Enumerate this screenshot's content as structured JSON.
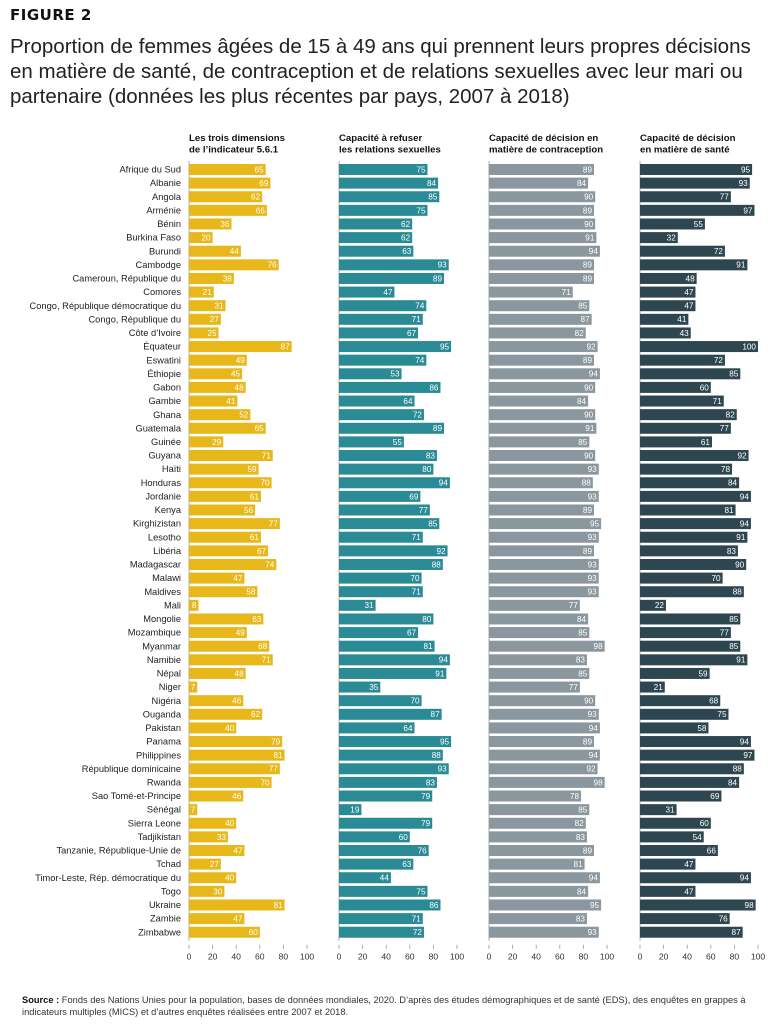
{
  "figure_label": "FIGURE 2",
  "title": "Proportion de femmes âgées de 15 à 49 ans qui prennent leurs propres décisions en matière de santé, de contraception et de relations sexuelles avec leur mari ou partenaire (données les plus récentes par pays, 2007 à 2018)",
  "source_label": "Source :",
  "source_text": "Fonds des Nations Unies pour la population, bases de données mondiales, 2020. D’après des études démographiques et de santé (EDS), des enquêtes en grappes à indicateurs multiples (MICS) et d’autres enquêtes réalisées entre 2007 et 2018.",
  "chart_data": {
    "type": "bar",
    "orientation": "horizontal",
    "xlim": [
      0,
      100
    ],
    "xticks": [
      0,
      20,
      40,
      60,
      80,
      100
    ],
    "categories": [
      "Afrique du Sud",
      "Albanie",
      "Angola",
      "Arménie",
      "Bénin",
      "Burkina Faso",
      "Burundi",
      "Cambodge",
      "Cameroun, République du",
      "Comores",
      "Congo, République démocratique du",
      "Congo, République du",
      "Côte d’Ivoire",
      "Équateur",
      "Eswatini",
      "Éthiopie",
      "Gabon",
      "Gambie",
      "Ghana",
      "Guatemala",
      "Guinée",
      "Guyana",
      "Haïti",
      "Honduras",
      "Jordanie",
      "Kenya",
      "Kirghizistan",
      "Lesotho",
      "Libéria",
      "Madagascar",
      "Malawi",
      "Maldives",
      "Mali",
      "Mongolie",
      "Mozambique",
      "Myanmar",
      "Namibie",
      "Népal",
      "Niger",
      "Nigéria",
      "Ouganda",
      "Pakistan",
      "Panama",
      "Philippines",
      "République dominicaine",
      "Rwanda",
      "Sao Tomé-et-Principe",
      "Sénégal",
      "Sierra Leone",
      "Tadjikistan",
      "Tanzanie, République-Unie de",
      "Tchad",
      "Timor-Leste, Rép. démocratique du",
      "Togo",
      "Ukraine",
      "Zambie",
      "Zimbabwe"
    ],
    "series": [
      {
        "name": "Les trois dimensions de l’indicateur 5.6.1",
        "color": "#e8b81a",
        "values": [
          65,
          69,
          62,
          66,
          36,
          20,
          44,
          76,
          38,
          21,
          31,
          27,
          25,
          87,
          49,
          45,
          48,
          41,
          52,
          65,
          29,
          71,
          59,
          70,
          61,
          56,
          77,
          61,
          67,
          74,
          47,
          58,
          8,
          63,
          49,
          68,
          71,
          48,
          7,
          46,
          62,
          40,
          79,
          81,
          77,
          70,
          46,
          7,
          40,
          33,
          47,
          27,
          40,
          30,
          81,
          47,
          60
        ]
      },
      {
        "name": "Capacité à refuser les relations sexuelles",
        "color": "#2a8a96",
        "values": [
          75,
          84,
          85,
          75,
          62,
          62,
          63,
          93,
          89,
          47,
          74,
          71,
          67,
          95,
          74,
          53,
          86,
          64,
          72,
          89,
          55,
          83,
          80,
          94,
          69,
          77,
          85,
          71,
          92,
          88,
          70,
          71,
          31,
          80,
          67,
          81,
          94,
          91,
          35,
          70,
          87,
          64,
          95,
          88,
          93,
          83,
          79,
          19,
          79,
          60,
          76,
          63,
          44,
          75,
          86,
          71,
          72
        ]
      },
      {
        "name": "Capacité de décision en matière de contraception",
        "color": "#8a979e",
        "values": [
          89,
          84,
          90,
          89,
          90,
          91,
          94,
          89,
          89,
          71,
          85,
          87,
          82,
          92,
          89,
          94,
          90,
          84,
          90,
          91,
          85,
          90,
          93,
          88,
          93,
          89,
          95,
          93,
          89,
          93,
          93,
          93,
          77,
          84,
          85,
          98,
          83,
          85,
          77,
          90,
          93,
          94,
          89,
          94,
          92,
          98,
          78,
          85,
          82,
          83,
          89,
          81,
          94,
          84,
          95,
          83,
          93
        ]
      },
      {
        "name": "Capacité de décision en matière de santé",
        "color": "#2e4650",
        "values": [
          95,
          93,
          77,
          97,
          55,
          32,
          72,
          91,
          48,
          47,
          47,
          41,
          43,
          100,
          72,
          85,
          60,
          71,
          82,
          77,
          61,
          92,
          78,
          84,
          94,
          81,
          94,
          91,
          83,
          90,
          70,
          88,
          22,
          85,
          77,
          85,
          91,
          59,
          21,
          68,
          75,
          58,
          94,
          97,
          88,
          84,
          69,
          31,
          60,
          54,
          66,
          47,
          94,
          47,
          98,
          76,
          87
        ]
      }
    ],
    "panel_titles": [
      [
        "Les trois dimensions",
        "de l’indicateur 5.6.1"
      ],
      [
        "Capacité à refuser",
        "les relations sexuelles"
      ],
      [
        "Capacité de décision en",
        "matière de contraception"
      ],
      [
        "Capacité de décision",
        "en matière de santé"
      ]
    ],
    "title": "Proportion de femmes âgées de 15 à 49 ans qui prennent leurs propres décisions en matière de santé, de contraception et de relations sexuelles avec leur mari ou partenaire (données les plus récentes par pays, 2007 à 2018)",
    "xlabel": "",
    "ylabel": "",
    "grid": false,
    "legend": "none"
  }
}
